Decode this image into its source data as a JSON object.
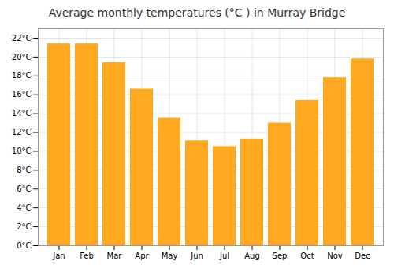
{
  "chart_data": {
    "type": "bar",
    "title": "Average monthly temperatures (°C ) in Murray Bridge",
    "categories": [
      "Jan",
      "Feb",
      "Mar",
      "Apr",
      "May",
      "Jun",
      "Jul",
      "Aug",
      "Sep",
      "Oct",
      "Nov",
      "Dec"
    ],
    "values": [
      21.4,
      21.4,
      19.4,
      16.6,
      13.5,
      11.1,
      10.5,
      11.3,
      13.0,
      15.4,
      17.8,
      19.8
    ],
    "color": "#FFA820",
    "ylim": [
      0,
      23
    ],
    "yticks": [
      {
        "value": 0,
        "label": "0°C"
      },
      {
        "value": 2,
        "label": "2°C"
      },
      {
        "value": 4,
        "label": "4°C"
      },
      {
        "value": 6,
        "label": "6°C"
      },
      {
        "value": 8,
        "label": "8°C"
      },
      {
        "value": 10,
        "label": "10°C"
      },
      {
        "value": 12,
        "label": "12°C"
      },
      {
        "value": 14,
        "label": "14°C"
      },
      {
        "value": 16,
        "label": "16°C"
      },
      {
        "value": 18,
        "label": "18°C"
      },
      {
        "value": 20,
        "label": "20°C"
      },
      {
        "value": 22,
        "label": "22°C"
      }
    ],
    "grid": true
  }
}
